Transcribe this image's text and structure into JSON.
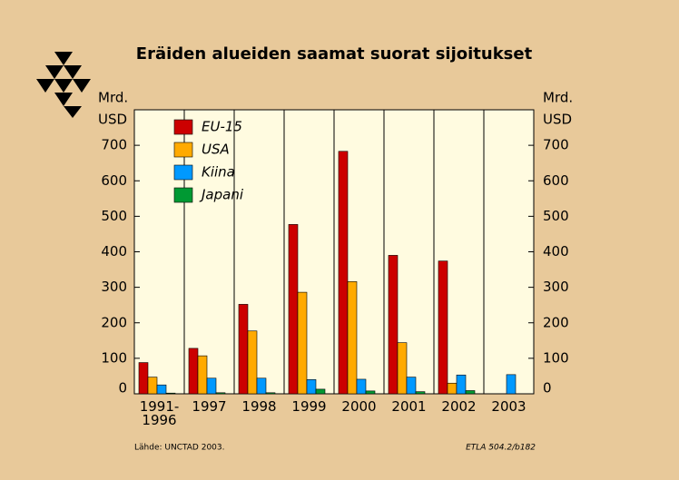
{
  "chart_data": {
    "type": "bar",
    "title": "Eräiden alueiden saamat suorat sijoitukset",
    "ylabel": [
      "Mrd.",
      "USD"
    ],
    "categories": [
      "1991-\n1996",
      "1997",
      "1998",
      "1999",
      "2000",
      "2001",
      "2002",
      "2003"
    ],
    "series": [
      {
        "name": "EU-15",
        "color": "#cc0000",
        "values": [
          88,
          128,
          252,
          477,
          683,
          390,
          374,
          null
        ]
      },
      {
        "name": "USA",
        "color": "#ffaa00",
        "values": [
          47,
          107,
          177,
          286,
          316,
          144,
          30,
          null
        ]
      },
      {
        "name": "Kiina",
        "color": "#0099ff",
        "values": [
          25,
          44,
          44,
          40,
          41,
          47,
          53,
          54
        ]
      },
      {
        "name": "Japani",
        "color": "#009933",
        "values": [
          2,
          3,
          3,
          13,
          8,
          6,
          9,
          null
        ]
      }
    ],
    "ylim": [
      0,
      800
    ],
    "yticks": [
      0,
      100,
      200,
      300,
      400,
      500,
      600,
      700
    ],
    "source": "Lähde:   UNCTAD 2003.",
    "code": "ETLA 504.2/b182"
  }
}
